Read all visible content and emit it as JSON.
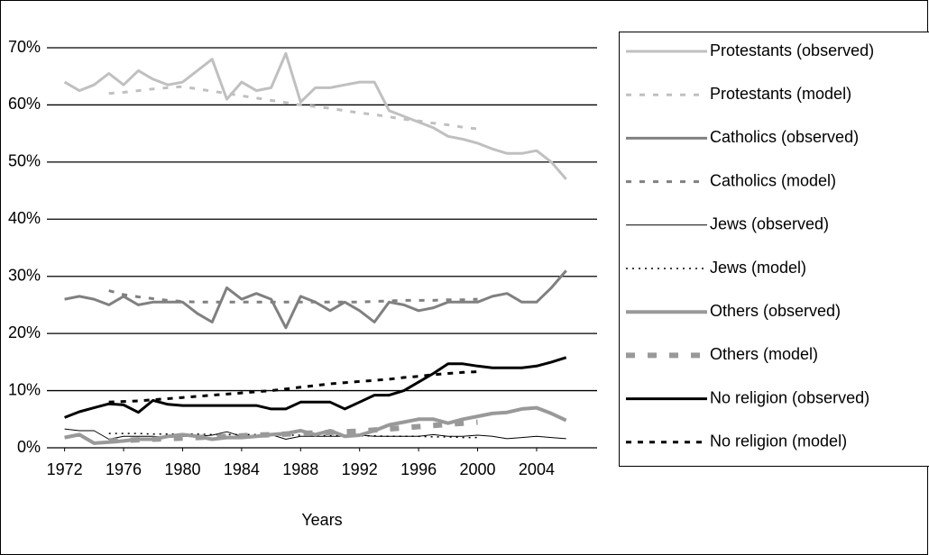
{
  "chart_data": {
    "type": "line",
    "xlabel": "Years",
    "x": [
      1972,
      1973,
      1974,
      1975,
      1976,
      1977,
      1978,
      1979,
      1980,
      1981,
      1982,
      1983,
      1984,
      1985,
      1986,
      1987,
      1988,
      1989,
      1990,
      1991,
      1992,
      1993,
      1994,
      1995,
      1996,
      1997,
      1998,
      1999,
      2000,
      2001,
      2002,
      2003,
      2004,
      2005,
      2006
    ],
    "xlim": [
      1970.8,
      2008.1
    ],
    "xticks": [
      1972,
      1976,
      1980,
      1984,
      1988,
      1992,
      1996,
      2000,
      2004
    ],
    "ylim": [
      0,
      70
    ],
    "yticks": [
      {
        "value": 0,
        "label": "0%"
      },
      {
        "value": 10,
        "label": "10%"
      },
      {
        "value": 20,
        "label": "20%"
      },
      {
        "value": 30,
        "label": "30%"
      },
      {
        "value": 40,
        "label": "40%"
      },
      {
        "value": 50,
        "label": "50%"
      },
      {
        "value": 60,
        "label": "60%"
      },
      {
        "value": 70,
        "label": "70%"
      }
    ],
    "grid": true,
    "legend": "right",
    "series": [
      {
        "name": "Protestants (observed)",
        "color": "#c0c0c0",
        "values": [
          64,
          62.5,
          63.5,
          65.5,
          63.5,
          66,
          64.5,
          63.5,
          64,
          66,
          68,
          61,
          64,
          62.5,
          63,
          69,
          60.5,
          63,
          63,
          63.5,
          64,
          64,
          59,
          58,
          57,
          56,
          54.5,
          54,
          53.3,
          52.3,
          51.5,
          51.5,
          52,
          50,
          47
        ]
      },
      {
        "name": "Protestants (model)",
        "color": "#c0c0c0",
        "values": [
          null,
          null,
          null,
          62,
          62.2,
          62.5,
          62.8,
          63,
          63.2,
          62.8,
          62.4,
          62,
          61.6,
          61.2,
          60.8,
          60.4,
          60,
          59.7,
          59.4,
          59,
          58.6,
          58.3,
          57.9,
          57.5,
          57.2,
          56.8,
          56.5,
          56.1,
          55.8,
          null,
          null,
          null,
          null,
          null,
          null
        ]
      },
      {
        "name": "Catholics (observed)",
        "color": "#808080",
        "values": [
          26,
          26.5,
          26,
          25,
          26.5,
          25,
          25.5,
          25.5,
          25.5,
          23.5,
          22,
          28,
          26,
          27,
          26,
          21,
          26.5,
          25.5,
          24,
          25.5,
          24,
          22,
          25.5,
          25,
          24,
          24.5,
          25.5,
          25.5,
          25.5,
          26.5,
          27,
          25.5,
          25.5,
          28,
          31
        ]
      },
      {
        "name": "Catholics (model)",
        "color": "#808080",
        "values": [
          null,
          null,
          null,
          27.5,
          26.8,
          26.4,
          26.1,
          25.8,
          25.6,
          25.5,
          25.5,
          25.5,
          25.5,
          25.5,
          25.5,
          25.5,
          25.5,
          25.5,
          25.5,
          25.5,
          25.5,
          25.6,
          25.7,
          25.8,
          25.8,
          25.8,
          25.9,
          25.9,
          26,
          null,
          null,
          null,
          null,
          null,
          null
        ]
      },
      {
        "name": "Jews (observed)",
        "color": "#000000",
        "values": [
          3.3,
          3,
          3,
          1.5,
          2,
          2,
          2,
          1.8,
          2,
          2,
          2.2,
          2.8,
          2,
          2.2,
          2.3,
          1.5,
          2,
          2,
          2,
          2,
          2.2,
          2,
          2,
          2,
          2,
          2.3,
          2,
          2,
          2.2,
          2,
          1.6,
          1.8,
          2,
          1.8,
          1.6
        ]
      },
      {
        "name": "Jews (model)",
        "color": "#000000",
        "values": [
          null,
          null,
          null,
          2.5,
          2.5,
          2.5,
          2.4,
          2.4,
          2.4,
          2.4,
          2.3,
          2.3,
          2.3,
          2.3,
          2.2,
          2.2,
          2.2,
          2.2,
          2.1,
          2.1,
          2.1,
          2.1,
          2,
          2,
          2,
          1.9,
          1.9,
          1.8,
          1.8,
          null,
          null,
          null,
          null,
          null,
          null
        ]
      },
      {
        "name": "Others (observed)",
        "color": "#999999",
        "values": [
          1.8,
          2.3,
          0.8,
          1,
          1.2,
          1.5,
          1.5,
          2,
          2.3,
          2,
          1.5,
          1.8,
          1.8,
          2,
          2.3,
          2.5,
          3,
          2.3,
          3,
          2,
          2.2,
          3,
          4,
          4.5,
          5,
          5,
          4.3,
          5,
          5.5,
          6,
          6.2,
          6.8,
          7,
          6,
          4.8
        ]
      },
      {
        "name": "Others (model)",
        "color": "#999999",
        "values": [
          null,
          null,
          null,
          1.2,
          1.3,
          1.4,
          1.5,
          1.6,
          1.7,
          1.8,
          1.9,
          2,
          2.1,
          2.2,
          2.3,
          2.4,
          2.5,
          2.6,
          2.7,
          2.8,
          2.9,
          3.1,
          3.3,
          3.5,
          3.7,
          3.9,
          4.1,
          4.3,
          4.5,
          null,
          null,
          null,
          null,
          null,
          null
        ]
      },
      {
        "name": "No religion (observed)",
        "color": "#000000",
        "values": [
          5.3,
          6.3,
          7,
          7.7,
          7.5,
          6.2,
          8.3,
          7.6,
          7.4,
          7.4,
          7.4,
          7.4,
          7.4,
          7.4,
          6.8,
          6.8,
          8,
          8,
          8,
          6.8,
          8,
          9.2,
          9.2,
          10,
          11.5,
          13,
          14.7,
          14.7,
          14.3,
          14,
          14,
          14,
          14.3,
          15,
          15.8
        ]
      },
      {
        "name": "No religion (model)",
        "color": "#000000",
        "values": [
          null,
          null,
          null,
          8,
          8.1,
          8.2,
          8.4,
          8.6,
          8.8,
          9,
          9.2,
          9.4,
          9.6,
          9.8,
          10,
          10.3,
          10.6,
          10.9,
          11.2,
          11.4,
          11.6,
          11.8,
          12,
          12.3,
          12.5,
          12.8,
          13,
          13.2,
          13.3,
          null,
          null,
          null,
          null,
          null,
          null
        ]
      }
    ]
  }
}
